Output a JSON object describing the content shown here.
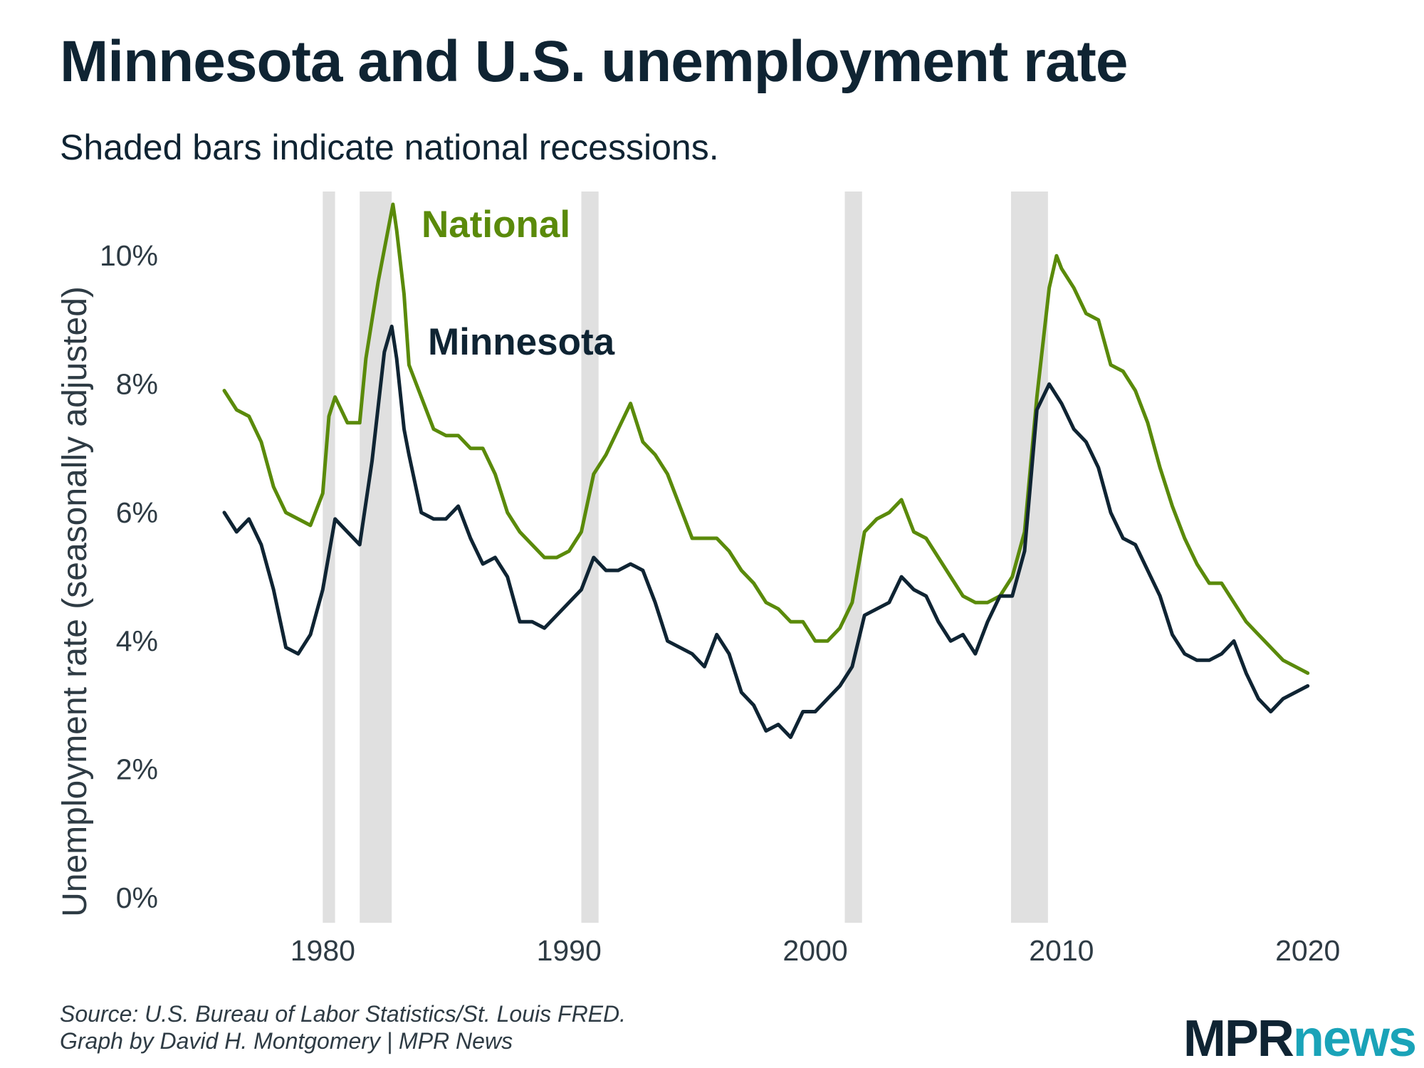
{
  "title": "Minnesota and U.S. unemployment rate",
  "subtitle": "Shaded bars indicate national recessions.",
  "source_line1": "Source: U.S. Bureau of Labor Statistics/St. Louis FRED.",
  "source_line2": "Graph by David H. Montgomery | MPR News",
  "logo": {
    "mpr": "MPR",
    "news": "news"
  },
  "colors": {
    "national": "#5a8a0a",
    "minnesota": "#0f2433",
    "recession": "#e0e0e0",
    "logo_news": "#1aa3b8"
  },
  "chart_data": {
    "type": "line",
    "title": "Minnesota and U.S. unemployment rate",
    "subtitle": "Shaded bars indicate national recessions.",
    "ylabel": "Unemployment rate (seasonally adjusted)",
    "xlabel": "",
    "xlim": [
      1976,
      2020.5
    ],
    "ylim": [
      0,
      11
    ],
    "x_ticks": [
      1980,
      1990,
      2000,
      2010,
      2020
    ],
    "x_tick_labels": [
      "1980",
      "1990",
      "2000",
      "2010",
      "2020"
    ],
    "y_ticks": [
      0,
      2,
      4,
      6,
      8,
      10
    ],
    "y_tick_labels": [
      "0%",
      "2%",
      "4%",
      "6%",
      "8%",
      "10%"
    ],
    "grid": false,
    "legend": "direct labels on lines",
    "recessions": [
      [
        1980.0,
        1980.5
      ],
      [
        1981.5,
        1982.8
      ],
      [
        1990.5,
        1991.2
      ],
      [
        2001.2,
        2001.9
      ],
      [
        2007.95,
        2009.45
      ]
    ],
    "series": [
      {
        "name": "National",
        "x": [
          1976.0,
          1976.5,
          1977.0,
          1977.5,
          1978.0,
          1978.5,
          1979.0,
          1979.5,
          1980.0,
          1980.25,
          1980.5,
          1981.0,
          1981.5,
          1981.75,
          1982.0,
          1982.25,
          1982.5,
          1982.85,
          1983.0,
          1983.3,
          1983.5,
          1984.0,
          1984.5,
          1985.0,
          1985.5,
          1986.0,
          1986.5,
          1987.0,
          1987.5,
          1988.0,
          1988.5,
          1989.0,
          1989.5,
          1990.0,
          1990.5,
          1991.0,
          1991.5,
          1992.0,
          1992.5,
          1993.0,
          1993.5,
          1994.0,
          1994.5,
          1995.0,
          1995.5,
          1996.0,
          1996.5,
          1997.0,
          1997.5,
          1998.0,
          1998.5,
          1999.0,
          1999.5,
          2000.0,
          2000.5,
          2001.0,
          2001.5,
          2002.0,
          2002.5,
          2003.0,
          2003.5,
          2004.0,
          2004.5,
          2005.0,
          2005.5,
          2006.0,
          2006.5,
          2007.0,
          2007.5,
          2008.0,
          2008.5,
          2009.0,
          2009.5,
          2009.8,
          2010.0,
          2010.5,
          2011.0,
          2011.5,
          2012.0,
          2012.5,
          2013.0,
          2013.5,
          2014.0,
          2014.5,
          2015.0,
          2015.5,
          2016.0,
          2016.5,
          2017.0,
          2017.5,
          2018.0,
          2018.5,
          2019.0,
          2019.5,
          2020.0
        ],
        "values": [
          7.9,
          7.6,
          7.5,
          7.1,
          6.4,
          6.0,
          5.9,
          5.8,
          6.3,
          7.5,
          7.8,
          7.4,
          7.4,
          8.4,
          9.0,
          9.6,
          10.1,
          10.8,
          10.4,
          9.4,
          8.3,
          7.8,
          7.3,
          7.2,
          7.2,
          7.0,
          7.0,
          6.6,
          6.0,
          5.7,
          5.5,
          5.3,
          5.3,
          5.4,
          5.7,
          6.6,
          6.9,
          7.3,
          7.7,
          7.1,
          6.9,
          6.6,
          6.1,
          5.6,
          5.6,
          5.6,
          5.4,
          5.1,
          4.9,
          4.6,
          4.5,
          4.3,
          4.3,
          4.0,
          4.0,
          4.2,
          4.6,
          5.7,
          5.9,
          6.0,
          6.2,
          5.7,
          5.6,
          5.3,
          5.0,
          4.7,
          4.6,
          4.6,
          4.7,
          5.0,
          5.7,
          7.8,
          9.5,
          10.0,
          9.8,
          9.5,
          9.1,
          9.0,
          8.3,
          8.2,
          7.9,
          7.4,
          6.7,
          6.1,
          5.6,
          5.2,
          4.9,
          4.9,
          4.6,
          4.3,
          4.1,
          3.9,
          3.7,
          3.6,
          3.5
        ]
      },
      {
        "name": "Minnesota",
        "x": [
          1976.0,
          1976.5,
          1977.0,
          1977.5,
          1978.0,
          1978.5,
          1979.0,
          1979.5,
          1980.0,
          1980.5,
          1981.0,
          1981.5,
          1982.0,
          1982.5,
          1982.8,
          1983.0,
          1983.3,
          1983.5,
          1984.0,
          1984.5,
          1985.0,
          1985.5,
          1986.0,
          1986.5,
          1987.0,
          1987.5,
          1988.0,
          1988.5,
          1989.0,
          1989.5,
          1990.0,
          1990.5,
          1991.0,
          1991.5,
          1992.0,
          1992.5,
          1993.0,
          1993.5,
          1994.0,
          1994.5,
          1995.0,
          1995.5,
          1996.0,
          1996.5,
          1997.0,
          1997.5,
          1998.0,
          1998.5,
          1999.0,
          1999.5,
          2000.0,
          2000.5,
          2001.0,
          2001.5,
          2002.0,
          2002.5,
          2003.0,
          2003.5,
          2004.0,
          2004.5,
          2005.0,
          2005.5,
          2006.0,
          2006.5,
          2007.0,
          2007.5,
          2008.0,
          2008.5,
          2009.0,
          2009.5,
          2010.0,
          2010.5,
          2011.0,
          2011.5,
          2012.0,
          2012.5,
          2013.0,
          2013.5,
          2014.0,
          2014.5,
          2015.0,
          2015.5,
          2016.0,
          2016.5,
          2017.0,
          2017.5,
          2018.0,
          2018.5,
          2019.0,
          2019.5,
          2020.0
        ],
        "values": [
          6.0,
          5.7,
          5.9,
          5.5,
          4.8,
          3.9,
          3.8,
          4.1,
          4.8,
          5.9,
          5.7,
          5.5,
          6.8,
          8.5,
          8.9,
          8.4,
          7.3,
          6.9,
          6.0,
          5.9,
          5.9,
          6.1,
          5.6,
          5.2,
          5.3,
          5.0,
          4.3,
          4.3,
          4.2,
          4.4,
          4.6,
          4.8,
          5.3,
          5.1,
          5.1,
          5.2,
          5.1,
          4.6,
          4.0,
          3.9,
          3.8,
          3.6,
          4.1,
          3.8,
          3.2,
          3.0,
          2.6,
          2.7,
          2.5,
          2.9,
          2.9,
          3.1,
          3.3,
          3.6,
          4.4,
          4.5,
          4.6,
          5.0,
          4.8,
          4.7,
          4.3,
          4.0,
          4.1,
          3.8,
          4.3,
          4.7,
          4.7,
          5.4,
          7.6,
          8.0,
          7.7,
          7.3,
          7.1,
          6.7,
          6.0,
          5.6,
          5.5,
          5.1,
          4.7,
          4.1,
          3.8,
          3.7,
          3.7,
          3.8,
          4.0,
          3.5,
          3.1,
          2.9,
          3.1,
          3.2,
          3.3
        ]
      }
    ]
  }
}
